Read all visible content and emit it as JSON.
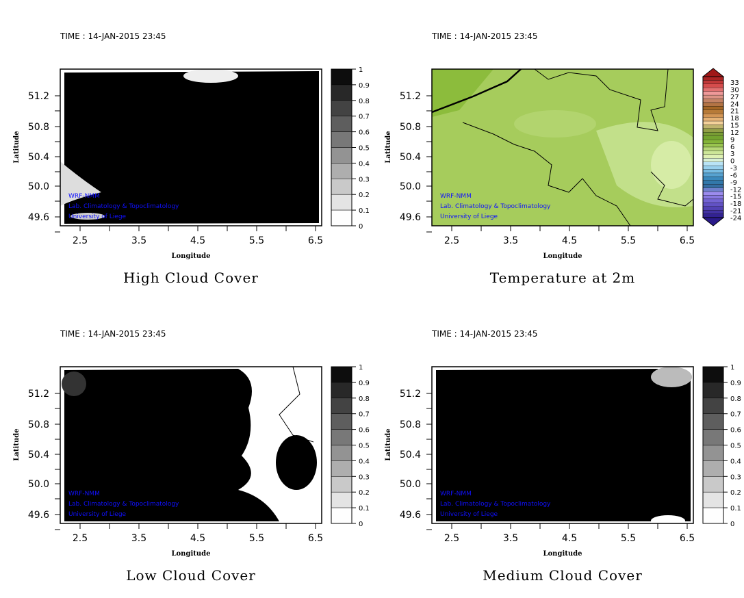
{
  "chart_data": [
    {
      "type": "heatmap",
      "title": "High Cloud Cover",
      "time_label": "TIME : 14-JAN-2015 23:45",
      "xlabel": "Longitude",
      "ylabel": "Latitude",
      "xticks": [
        "2.5",
        "3.5",
        "4.5",
        "5.5",
        "6.5"
      ],
      "yticks": [
        "51.2",
        "50.8",
        "50.4",
        "50.0",
        "49.6"
      ],
      "xlim": [
        2.15,
        6.6
      ],
      "ylim": [
        49.48,
        51.55
      ],
      "colorbar": {
        "ticks": [
          "1",
          "0.9",
          "0.8",
          "0.7",
          "0.6",
          "0.5",
          "0.4",
          "0.3",
          "0.2",
          "0.1",
          "0"
        ],
        "range": [
          0,
          1
        ]
      },
      "credits": [
        "WRF-NMM",
        "Lab. Climatology & Topoclimatology",
        "University of Liege"
      ],
      "field_summary": "cover near 1 everywhere except clear patches in south-west and along north edge near 4.5E"
    },
    {
      "type": "heatmap",
      "title": "Temperature at 2m",
      "time_label": "TIME : 14-JAN-2015 23:45",
      "xlabel": "Longitude",
      "ylabel": "Latitude",
      "xticks": [
        "2.5",
        "3.5",
        "4.5",
        "5.5",
        "6.5"
      ],
      "yticks": [
        "51.2",
        "50.8",
        "50.4",
        "50.0",
        "49.6"
      ],
      "xlim": [
        2.15,
        6.6
      ],
      "ylim": [
        49.48,
        51.55
      ],
      "colorbar": {
        "ticks": [
          "33",
          "30",
          "27",
          "24",
          "21",
          "18",
          "15",
          "12",
          "9",
          "6",
          "3",
          "0",
          "-3",
          "-6",
          "-9",
          "-12",
          "-15",
          "-18",
          "-21",
          "-24"
        ],
        "range": [
          -24,
          33
        ]
      },
      "credits": [
        "WRF-NMM",
        "Lab. Climatology & Topoclimatology",
        "University of Liege"
      ],
      "field_summary": "temperatures roughly 3 to 9 across domain, warmest in north-west, coolest in south-east Ardennes"
    },
    {
      "type": "heatmap",
      "title": "Low Cloud Cover",
      "time_label": "TIME : 14-JAN-2015 23:45",
      "xlabel": "Longitude",
      "ylabel": "Latitude",
      "xticks": [
        "2.5",
        "3.5",
        "4.5",
        "5.5",
        "6.5"
      ],
      "yticks": [
        "51.2",
        "50.8",
        "50.4",
        "50.0",
        "49.6"
      ],
      "xlim": [
        2.15,
        6.6
      ],
      "ylim": [
        49.48,
        51.55
      ],
      "colorbar": {
        "ticks": [
          "1",
          "0.9",
          "0.8",
          "0.7",
          "0.6",
          "0.5",
          "0.4",
          "0.3",
          "0.2",
          "0.1",
          "0"
        ],
        "range": [
          0,
          1
        ]
      },
      "credits": [
        "WRF-NMM",
        "Lab. Climatology & Topoclimatology",
        "University of Liege"
      ],
      "field_summary": "overcast west of ~5.5E, clear east of ~5.7E except cloud patch near 6.2E 50.3N"
    },
    {
      "type": "heatmap",
      "title": "Medium Cloud Cover",
      "time_label": "TIME : 14-JAN-2015 23:45",
      "xlabel": "Longitude",
      "ylabel": "Latitude",
      "xticks": [
        "2.5",
        "3.5",
        "4.5",
        "5.5",
        "6.5"
      ],
      "yticks": [
        "51.2",
        "50.8",
        "50.4",
        "50.0",
        "49.6"
      ],
      "xlim": [
        2.15,
        6.6
      ],
      "ylim": [
        49.48,
        51.55
      ],
      "colorbar": {
        "ticks": [
          "1",
          "0.9",
          "0.8",
          "0.7",
          "0.6",
          "0.5",
          "0.4",
          "0.3",
          "0.2",
          "0.1",
          "0"
        ],
        "range": [
          0,
          1
        ]
      },
      "credits": [
        "WRF-NMM",
        "Lab. Climatology & Topoclimatology",
        "University of Liege"
      ],
      "field_summary": "overcast almost everywhere; clear patches in far north-east and south near 5.8E"
    }
  ],
  "colors": {
    "credit": "#1010ff",
    "temp_base": "#a6cc5c",
    "temp_light": "#c8e696"
  }
}
